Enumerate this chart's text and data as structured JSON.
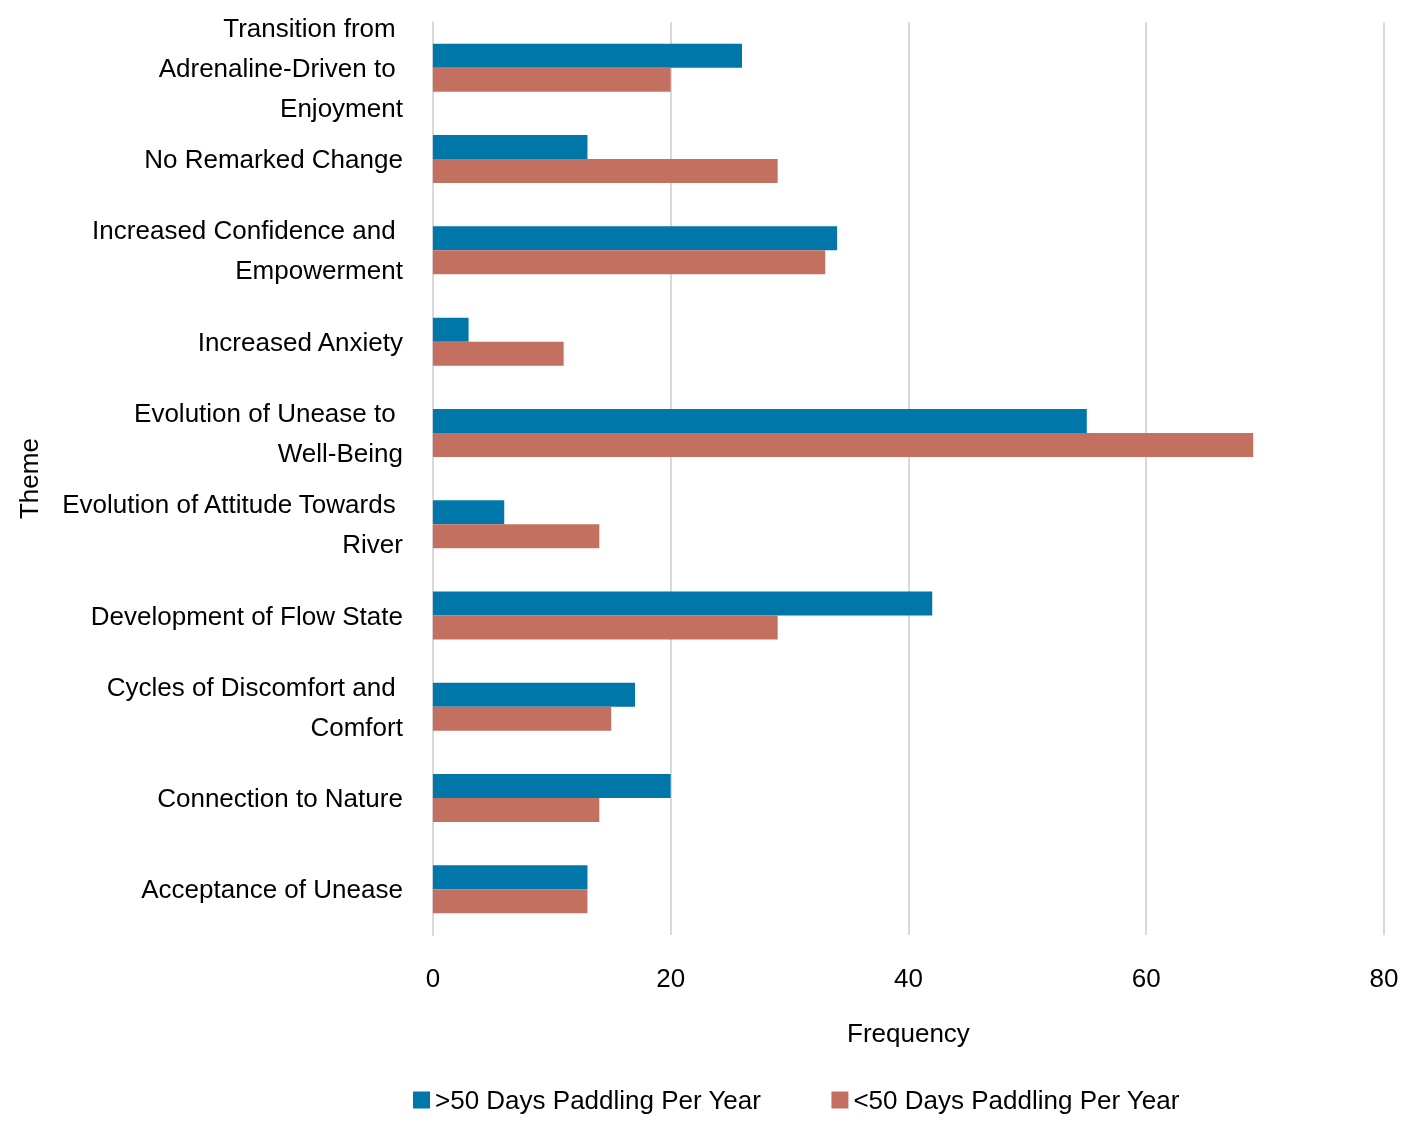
{
  "chart_data": {
    "type": "bar",
    "orientation": "horizontal",
    "xlabel": "Frequency",
    "ylabel": "Theme",
    "categories": [
      "Transition from Adrenaline-Driven to Enjoyment",
      "No Remarked Change",
      "Increased Confidence and Empowerment",
      "Increased Anxiety",
      "Evolution of Unease to Well-Being",
      "Evolution of Attitude Towards River",
      "Development of Flow State",
      "Cycles of Discomfort and Comfort",
      "Connection to Nature",
      "Acceptance of Unease"
    ],
    "series": [
      {
        "name": ">50 Days Paddling Per Year",
        "color": "#0077a8",
        "values": [
          26,
          13,
          34,
          3,
          55,
          6,
          42,
          17,
          20,
          13
        ]
      },
      {
        "name": "<50 Days Paddling Per Year",
        "color": "#c47060",
        "values": [
          20,
          29,
          33,
          11,
          69,
          14,
          29,
          15,
          14,
          13
        ]
      }
    ],
    "xlim": [
      0,
      80
    ],
    "xticks": [
      0,
      20,
      40,
      60,
      80
    ],
    "grid": "x",
    "legend": "bottom"
  }
}
